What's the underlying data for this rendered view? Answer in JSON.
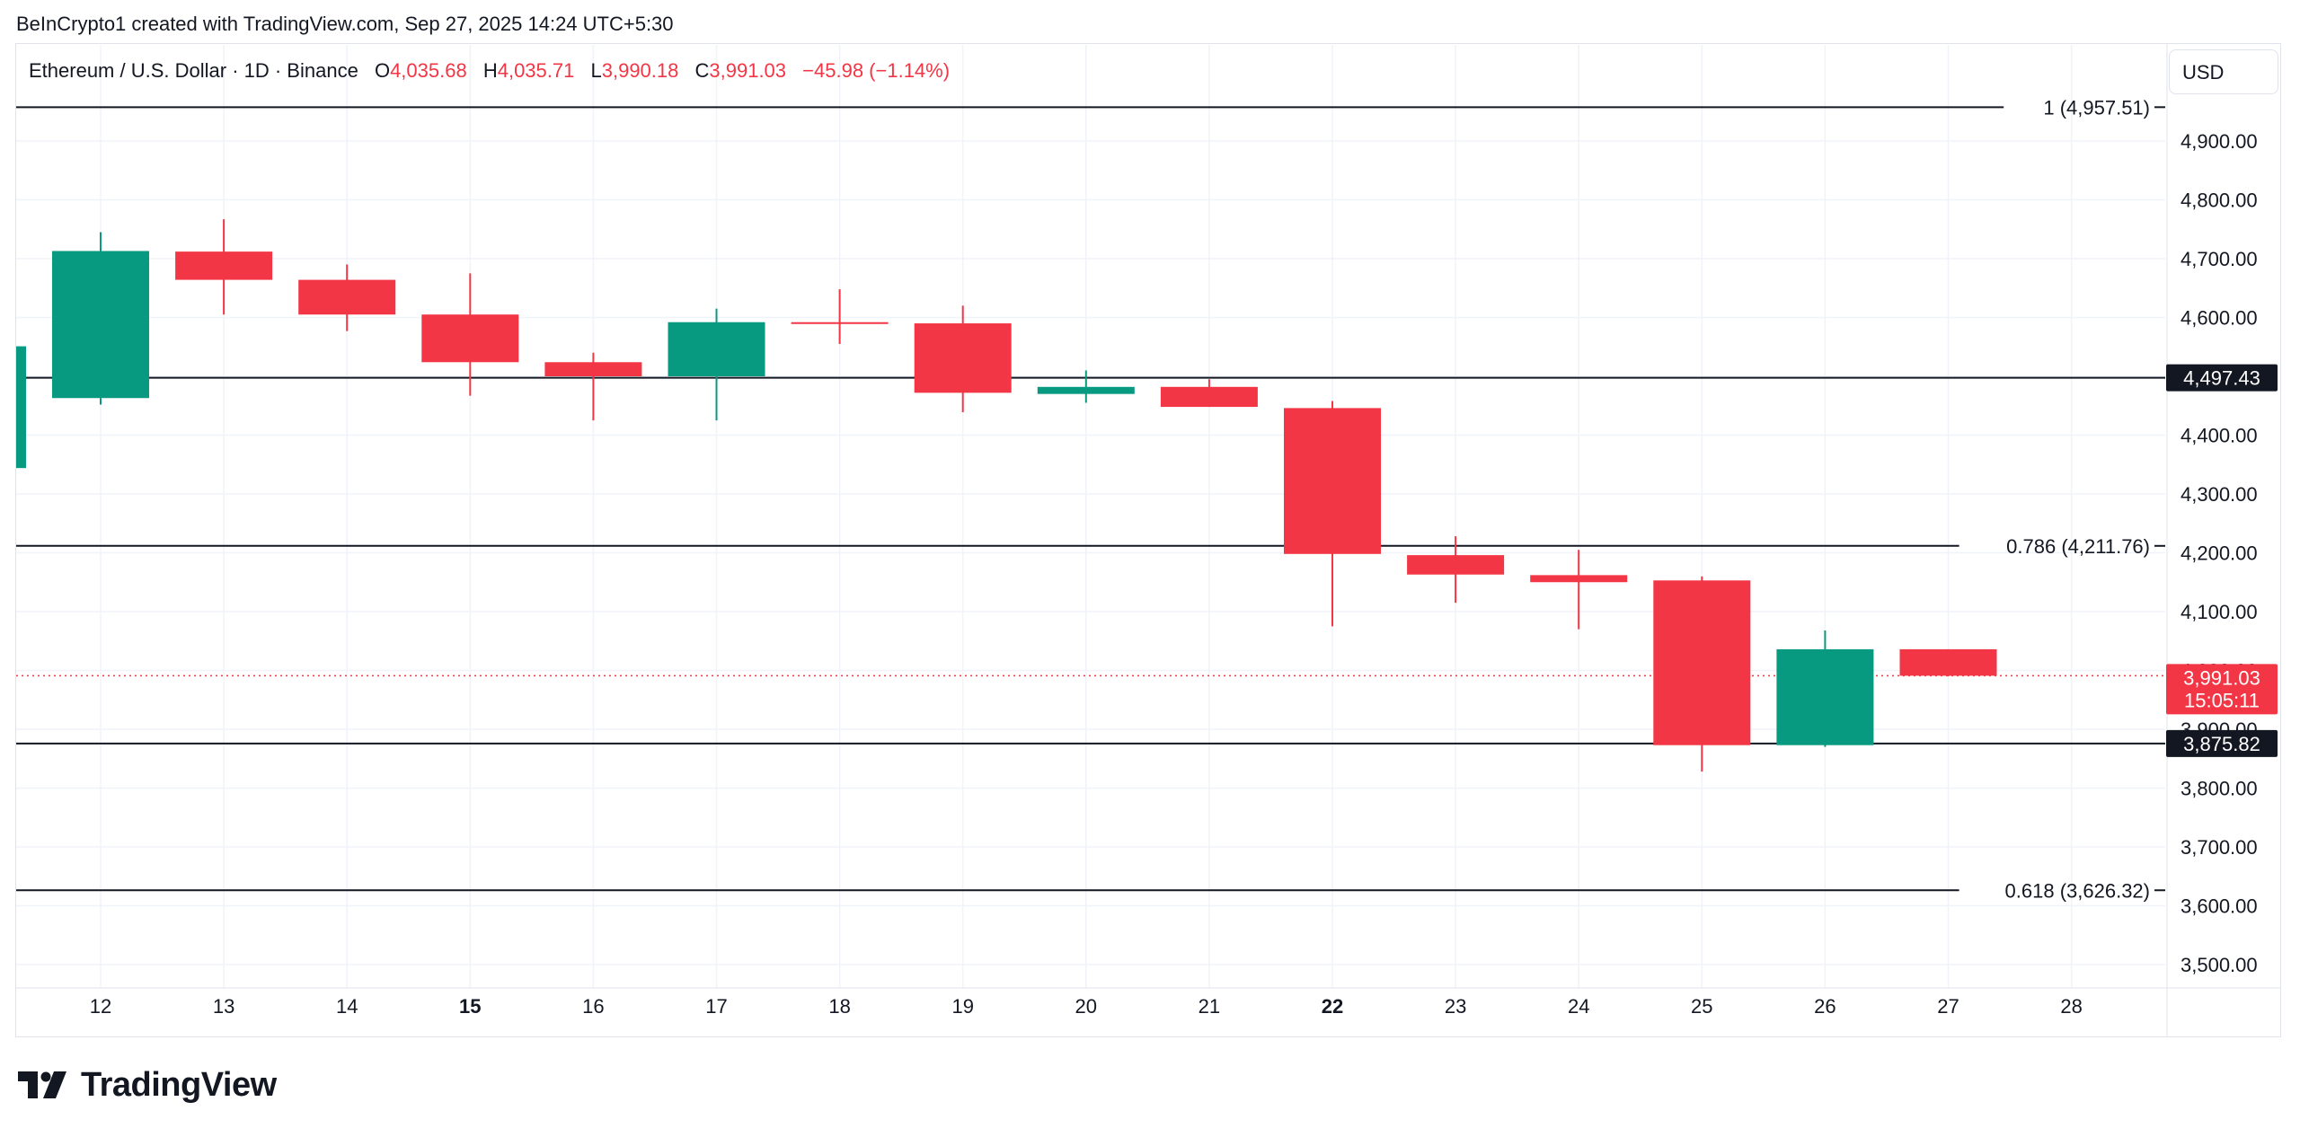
{
  "header": {
    "text": "BeInCrypto1 created with TradingView.com, Sep 27, 2025 14:24 UTC+5:30"
  },
  "legend": {
    "symbol": "Ethereum / U.S. Dollar · 1D · Binance",
    "open_label": "O",
    "open": "4,035.68",
    "high_label": "H",
    "high": "4,035.71",
    "low_label": "L",
    "low": "3,990.18",
    "close_label": "C",
    "close": "3,991.03",
    "change": "−45.98 (−1.14%)"
  },
  "currency_button": {
    "label": "USD"
  },
  "brand": {
    "name": "TradingView"
  },
  "colors": {
    "up": "#089981",
    "down": "#f23645",
    "line": "#131722",
    "grid": "#f0f3fa"
  },
  "chart_data": {
    "type": "candlestick",
    "x_labels": [
      "12",
      "13",
      "14",
      "15",
      "16",
      "17",
      "18",
      "19",
      "20",
      "21",
      "22",
      "23",
      "24",
      "25",
      "26",
      "27",
      "28"
    ],
    "bold_x_labels": [
      "15",
      "22"
    ],
    "y_ticks": [
      3500,
      3600,
      3700,
      3800,
      3900,
      4000,
      4100,
      4200,
      4300,
      4400,
      4500,
      4600,
      4700,
      4800,
      4900
    ],
    "y_tick_labels": [
      "3,500.00",
      "3,600.00",
      "3,700.00",
      "3,800.00",
      "3,900.00",
      "4,000.00",
      "4,100.00",
      "4,200.00",
      "4,300.00",
      "4,400.00",
      "4,500.00",
      "4,600.00",
      "4,700.00",
      "4,800.00",
      "4,900.00"
    ],
    "y_range": [
      3410,
      5040
    ],
    "partial_candle": {
      "day": "11",
      "open": 4344,
      "high": 4551,
      "low": 4344,
      "close": 4551
    },
    "candles": [
      {
        "day": "12",
        "open": 4463,
        "high": 4745,
        "low": 4452,
        "close": 4713
      },
      {
        "day": "13",
        "open": 4712,
        "high": 4767,
        "low": 4605,
        "close": 4664
      },
      {
        "day": "14",
        "open": 4664,
        "high": 4690,
        "low": 4577,
        "close": 4605
      },
      {
        "day": "15",
        "open": 4605,
        "high": 4675,
        "low": 4467,
        "close": 4524
      },
      {
        "day": "16",
        "open": 4524,
        "high": 4540,
        "low": 4425,
        "close": 4500
      },
      {
        "day": "17",
        "open": 4500,
        "high": 4615,
        "low": 4425,
        "close": 4592
      },
      {
        "day": "18",
        "open": 4592,
        "high": 4648,
        "low": 4555,
        "close": 4590
      },
      {
        "day": "19",
        "open": 4590,
        "high": 4620,
        "low": 4439,
        "close": 4472
      },
      {
        "day": "20",
        "open": 4470,
        "high": 4510,
        "low": 4455,
        "close": 4482
      },
      {
        "day": "21",
        "open": 4482,
        "high": 4495,
        "low": 4448,
        "close": 4448
      },
      {
        "day": "22",
        "open": 4446,
        "high": 4458,
        "low": 4075,
        "close": 4198
      },
      {
        "day": "23",
        "open": 4196,
        "high": 4228,
        "low": 4115,
        "close": 4163
      },
      {
        "day": "24",
        "open": 4162,
        "high": 4205,
        "low": 4070,
        "close": 4150
      },
      {
        "day": "25",
        "open": 4153,
        "high": 4160,
        "low": 3828,
        "close": 3873
      },
      {
        "day": "26",
        "open": 3873,
        "high": 4068,
        "low": 3870,
        "close": 4036
      },
      {
        "day": "27",
        "open": 4036,
        "high": 4036,
        "low": 3990,
        "close": 3991
      }
    ],
    "fib_levels": [
      {
        "value": 4957.51,
        "label": "1 (4,957.51)"
      },
      {
        "value": 4211.76,
        "label": "0.786 (4,211.76)"
      },
      {
        "value": 3626.32,
        "label": "0.618 (3,626.32)"
      }
    ],
    "horizontal_lines": [
      {
        "value": 4497.43,
        "label": "4,497.43"
      },
      {
        "value": 3875.82,
        "label": "3,875.82"
      }
    ],
    "last_price": {
      "value": 3991.03,
      "label": "3,991.03",
      "countdown": "15:05:11"
    }
  }
}
